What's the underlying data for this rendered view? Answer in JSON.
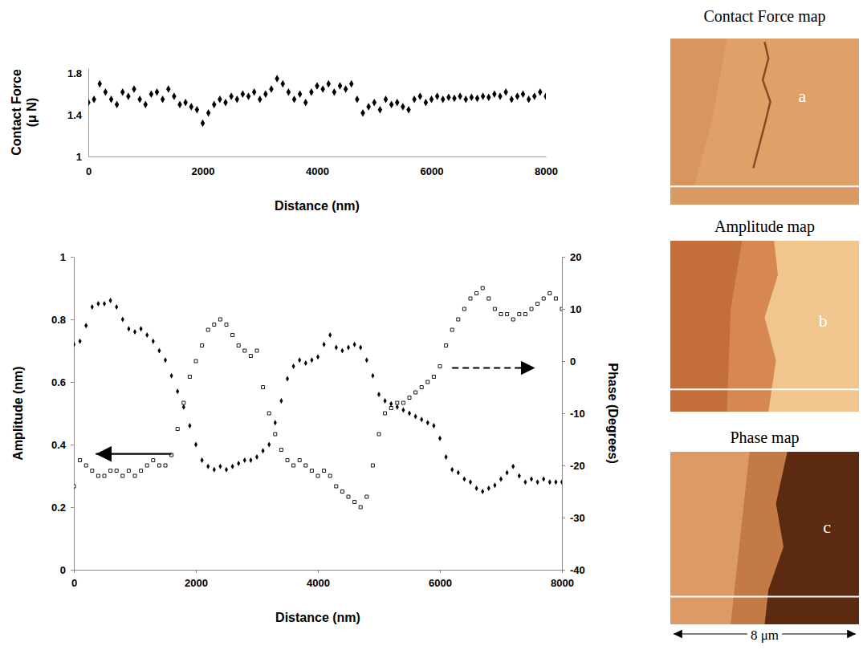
{
  "chart_data": [
    {
      "type": "scatter",
      "xlabel": "Distance (nm)",
      "ylabel": "Contact Force (μ N)",
      "x": [
        0,
        100,
        200,
        300,
        400,
        500,
        600,
        700,
        800,
        900,
        1000,
        1100,
        1200,
        1300,
        1400,
        1500,
        1600,
        1700,
        1800,
        1900,
        2000,
        2100,
        2200,
        2300,
        2400,
        2500,
        2600,
        2700,
        2800,
        2900,
        3000,
        3100,
        3200,
        3300,
        3400,
        3500,
        3600,
        3700,
        3800,
        3900,
        4000,
        4100,
        4200,
        4300,
        4400,
        4500,
        4600,
        4700,
        4800,
        4900,
        5000,
        5100,
        5200,
        5300,
        5400,
        5500,
        5600,
        5700,
        5800,
        5900,
        6000,
        6100,
        6200,
        6300,
        6400,
        6500,
        6600,
        6700,
        6800,
        6900,
        7000,
        7100,
        7200,
        7300,
        7400,
        7500,
        7600,
        7700,
        7800,
        7900,
        8000
      ],
      "values": [
        1.52,
        1.55,
        1.7,
        1.62,
        1.55,
        1.5,
        1.62,
        1.58,
        1.65,
        1.55,
        1.5,
        1.6,
        1.62,
        1.55,
        1.65,
        1.58,
        1.5,
        1.52,
        1.48,
        1.45,
        1.32,
        1.42,
        1.5,
        1.55,
        1.52,
        1.58,
        1.55,
        1.6,
        1.58,
        1.62,
        1.55,
        1.6,
        1.65,
        1.75,
        1.7,
        1.62,
        1.55,
        1.6,
        1.52,
        1.62,
        1.68,
        1.65,
        1.7,
        1.62,
        1.68,
        1.65,
        1.7,
        1.55,
        1.42,
        1.48,
        1.52,
        1.45,
        1.55,
        1.5,
        1.52,
        1.48,
        1.45,
        1.55,
        1.58,
        1.52,
        1.55,
        1.58,
        1.55,
        1.57,
        1.56,
        1.58,
        1.55,
        1.57,
        1.56,
        1.58,
        1.57,
        1.6,
        1.58,
        1.62,
        1.55,
        1.58,
        1.6,
        1.55,
        1.58,
        1.62,
        1.58
      ],
      "color": "#000000",
      "marker": "diamond",
      "xlim": [
        0,
        8000
      ],
      "xticks": [
        0,
        2000,
        4000,
        6000,
        8000
      ],
      "ylim": [
        1,
        1.85
      ],
      "yticks": [
        1,
        1.4,
        1.8
      ],
      "grid": false
    },
    {
      "type": "scatter",
      "xlabel": "Distance (nm)",
      "ylabel": "Amplitude (nm)",
      "y2label": "Phase (Degrees)",
      "x": [
        0,
        100,
        200,
        300,
        400,
        500,
        600,
        700,
        800,
        900,
        1000,
        1100,
        1200,
        1300,
        1400,
        1500,
        1600,
        1700,
        1800,
        1900,
        2000,
        2100,
        2200,
        2300,
        2400,
        2500,
        2600,
        2700,
        2800,
        2900,
        3000,
        3100,
        3200,
        3300,
        3400,
        3500,
        3600,
        3700,
        3800,
        3900,
        4000,
        4100,
        4200,
        4300,
        4400,
        4500,
        4600,
        4700,
        4800,
        4900,
        5000,
        5100,
        5200,
        5300,
        5400,
        5500,
        5600,
        5700,
        5800,
        5900,
        6000,
        6100,
        6200,
        6300,
        6400,
        6500,
        6600,
        6700,
        6800,
        6900,
        7000,
        7100,
        7200,
        7300,
        7400,
        7500,
        7600,
        7700,
        7800,
        7900,
        8000
      ],
      "series": [
        {
          "values": [
            0.72,
            0.73,
            0.78,
            0.84,
            0.85,
            0.85,
            0.86,
            0.84,
            0.8,
            0.77,
            0.76,
            0.77,
            0.75,
            0.73,
            0.7,
            0.67,
            0.62,
            0.57,
            0.52,
            0.46,
            0.4,
            0.35,
            0.33,
            0.32,
            0.33,
            0.32,
            0.33,
            0.34,
            0.35,
            0.35,
            0.36,
            0.38,
            0.4,
            0.47,
            0.54,
            0.61,
            0.65,
            0.67,
            0.66,
            0.67,
            0.68,
            0.72,
            0.75,
            0.71,
            0.7,
            0.71,
            0.72,
            0.71,
            0.67,
            0.62,
            0.56,
            0.54,
            0.53,
            0.52,
            0.51,
            0.5,
            0.49,
            0.48,
            0.47,
            0.46,
            0.42,
            0.36,
            0.32,
            0.31,
            0.29,
            0.28,
            0.26,
            0.25,
            0.26,
            0.27,
            0.29,
            0.31,
            0.33,
            0.3,
            0.28,
            0.29,
            0.28,
            0.29,
            0.28,
            0.28,
            0.28
          ],
          "color": "#000000",
          "marker": "diamond"
        },
        {
          "values": [
            -24,
            -19,
            -20,
            -21,
            -22,
            -22,
            -21,
            -21,
            -22,
            -21,
            -22,
            -21,
            -20,
            -19,
            -20,
            -20,
            -18,
            -13,
            -8,
            -3,
            0,
            3,
            6,
            7,
            8,
            7,
            5,
            3,
            2,
            1,
            2,
            -5,
            -10,
            -14,
            -17,
            -19,
            -20,
            -19,
            -20,
            -21,
            -22,
            -21,
            -22,
            -24,
            -25,
            -26,
            -27,
            -28,
            -26,
            -20,
            -14,
            -10,
            -9,
            -8,
            -8,
            -7,
            -6,
            -5,
            -4,
            -3,
            -1,
            3,
            6,
            8,
            10,
            12,
            13,
            14,
            12,
            10,
            9,
            9,
            8,
            9,
            9,
            10,
            11,
            12,
            13,
            12,
            10
          ],
          "color": "#000000",
          "marker": "open-square",
          "axis": "y2"
        }
      ],
      "xlim": [
        0,
        8000
      ],
      "xticks": [
        0,
        2000,
        4000,
        6000,
        8000
      ],
      "ylim": [
        0,
        1
      ],
      "yticks": [
        0,
        0.2,
        0.4,
        0.6,
        0.8,
        1
      ],
      "y2lim": [
        -40,
        20
      ],
      "y2ticks": [
        -40,
        -30,
        -20,
        -10,
        0,
        10,
        20
      ],
      "grid": false
    }
  ],
  "maps": {
    "panels": [
      {
        "title": "Contact Force map",
        "letter": "a"
      },
      {
        "title": "Amplitude map",
        "letter": "b"
      },
      {
        "title": "Phase map",
        "letter": "c"
      }
    ],
    "scale_bar": "8 μm"
  }
}
